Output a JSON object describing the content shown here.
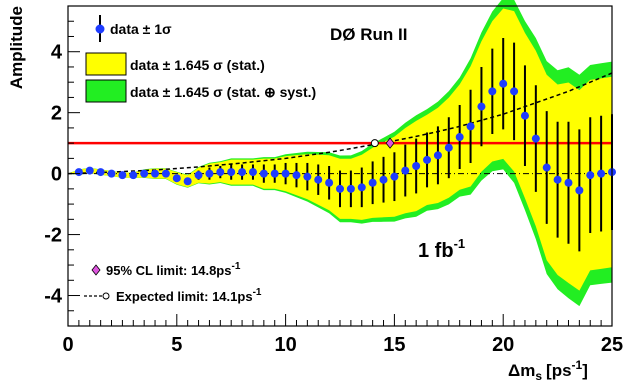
{
  "chart_data": {
    "type": "scatter",
    "title": "DØ Run II",
    "xlabel": "Δm",
    "xlabel_sub": "s",
    "xlabel_unit": "[ps",
    "xlabel_unit_sup": "-1",
    "xlabel_unit_close": "]",
    "ylabel": "Amplitude",
    "xlim": [
      0,
      25
    ],
    "ylim": [
      -5,
      5.5
    ],
    "xticks": [
      0,
      5,
      10,
      15,
      20,
      25
    ],
    "yticks": [
      -4,
      -2,
      0,
      2,
      4
    ],
    "luminosity_label": "1 fb",
    "luminosity_sup": "-1",
    "legend": {
      "data_label": "data ± 1σ",
      "stat_band_label": "data ± 1.645 σ (stat.)",
      "syst_band_label": "data ± 1.645 σ (stat. ⊕ syst.)",
      "cl_limit_label": "95% CL limit: 14.8ps",
      "cl_limit_sup": "-1",
      "expected_limit_label": "Expected limit: 14.1ps",
      "expected_limit_sup": "-1"
    },
    "colors": {
      "stat_band": "#ffff00",
      "syst_band": "#22ee22",
      "points": "#1e3cff",
      "reference_line": "#ff0000",
      "limit_marker": "#dd55dd"
    },
    "reference_line_y": 1,
    "zero_line_y": 0,
    "observed_limit": 14.8,
    "expected_limit": 14.1,
    "series": [
      {
        "name": "data ± 1σ",
        "x": [
          0.5,
          1.0,
          1.5,
          2.0,
          2.5,
          3.0,
          3.5,
          4.0,
          4.5,
          5.0,
          5.5,
          6.0,
          6.5,
          7.0,
          7.5,
          8.0,
          8.5,
          9.0,
          9.5,
          10.0,
          10.5,
          11.0,
          11.5,
          12.0,
          12.5,
          13.0,
          13.5,
          14.0,
          14.5,
          15.0,
          15.5,
          16.0,
          16.5,
          17.0,
          17.5,
          18.0,
          18.5,
          19.0,
          19.5,
          20.0,
          20.5,
          21.0,
          21.5,
          22.0,
          22.5,
          23.0,
          23.5,
          24.0,
          24.5,
          25.0
        ],
        "y": [
          0.05,
          0.1,
          0.05,
          0.0,
          -0.05,
          -0.05,
          0.0,
          0.0,
          0.0,
          -0.15,
          -0.25,
          -0.05,
          0.0,
          0.05,
          0.05,
          0.05,
          0.05,
          0.0,
          0.0,
          0.0,
          -0.05,
          -0.1,
          -0.2,
          -0.3,
          -0.5,
          -0.5,
          -0.45,
          -0.3,
          -0.2,
          -0.1,
          0.1,
          0.25,
          0.45,
          0.6,
          0.85,
          1.2,
          1.55,
          2.2,
          2.7,
          2.95,
          2.7,
          1.9,
          1.15,
          0.2,
          -0.2,
          -0.3,
          -0.55,
          -0.05,
          0.0,
          0.05
        ],
        "err": [
          0.05,
          0.05,
          0.05,
          0.05,
          0.05,
          0.05,
          0.08,
          0.1,
          0.1,
          0.12,
          0.12,
          0.15,
          0.2,
          0.2,
          0.25,
          0.25,
          0.25,
          0.3,
          0.3,
          0.35,
          0.4,
          0.45,
          0.5,
          0.55,
          0.6,
          0.6,
          0.65,
          0.7,
          0.75,
          0.8,
          0.85,
          0.9,
          0.9,
          0.95,
          1.0,
          1.05,
          1.2,
          1.3,
          1.4,
          1.5,
          1.6,
          1.65,
          1.75,
          1.85,
          1.9,
          2.0,
          2.0,
          1.9,
          1.9,
          1.9
        ]
      },
      {
        "name": "Expected limit: 14.1ps",
        "x": [
          0,
          2,
          4,
          6,
          8,
          10,
          12,
          13,
          14,
          15,
          16,
          17,
          18,
          19,
          20,
          21,
          22,
          23,
          24,
          25
        ],
        "y": [
          0.0,
          0.05,
          0.12,
          0.22,
          0.35,
          0.5,
          0.7,
          0.82,
          0.95,
          1.08,
          1.22,
          1.38,
          1.55,
          1.75,
          1.95,
          2.2,
          2.45,
          2.7,
          3.0,
          3.3
        ]
      }
    ]
  }
}
